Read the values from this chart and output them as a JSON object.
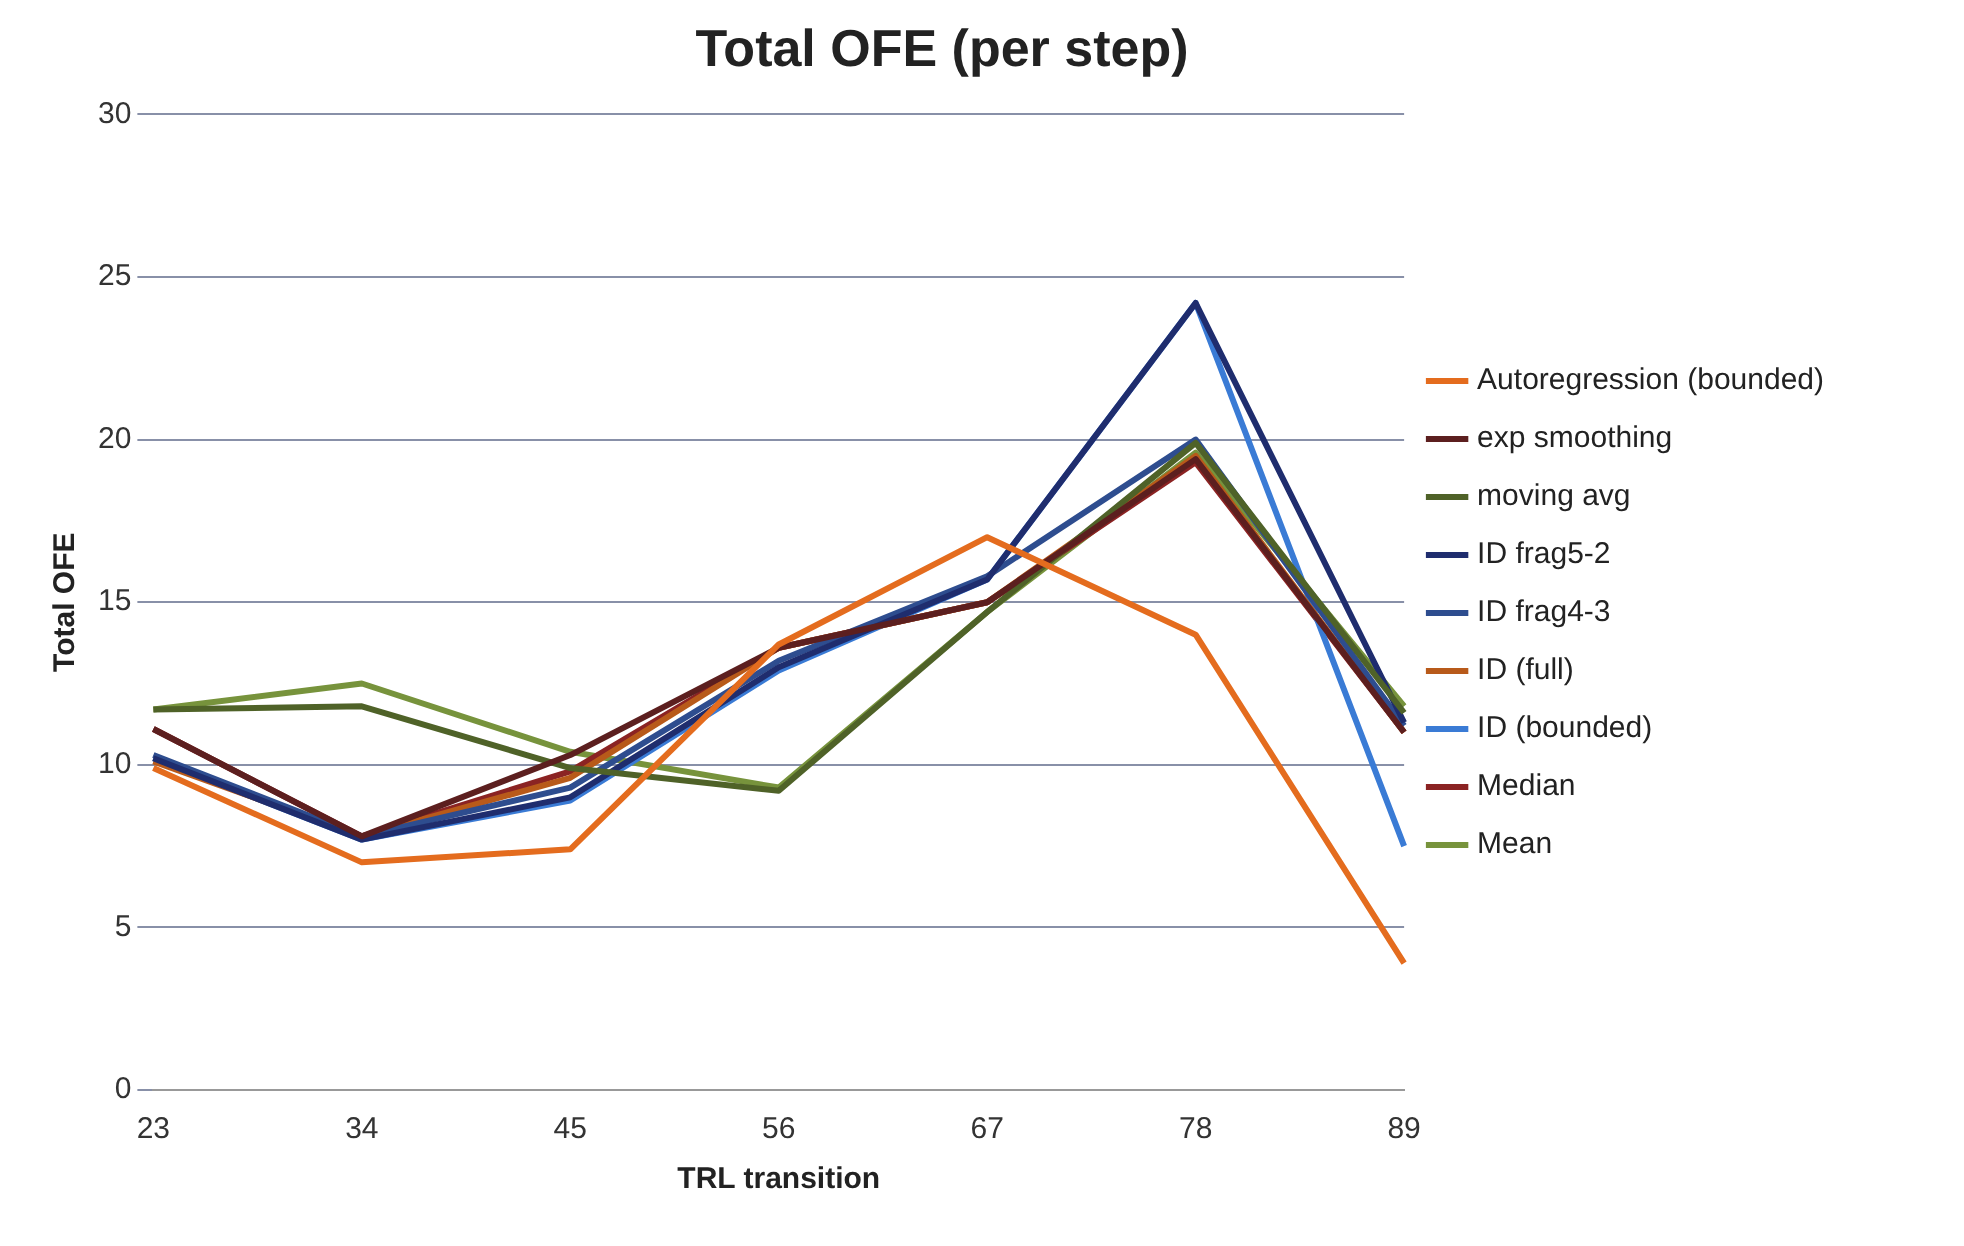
{
  "chart_data": {
    "type": "line",
    "title": "Total OFE (per step)",
    "xlabel": "TRL transition",
    "ylabel": "Total OFE",
    "categories": [
      "23",
      "34",
      "45",
      "56",
      "67",
      "78",
      "89"
    ],
    "ylim": [
      0,
      30
    ],
    "yticks": [
      0,
      5,
      10,
      15,
      20,
      25,
      30
    ],
    "grid": "y",
    "legend": "right",
    "marker": "none",
    "line_style": "solid",
    "series": [
      {
        "name": "Autoregression (bounded)",
        "color": "#e46c1e",
        "values": [
          9.9,
          7.0,
          7.4,
          13.7,
          17.0,
          14.0,
          3.9
        ]
      },
      {
        "name": "exp smoothing",
        "color": "#5c1f1f",
        "values": [
          11.1,
          7.8,
          10.3,
          13.6,
          15.0,
          19.4,
          11.0
        ]
      },
      {
        "name": "moving avg",
        "color": "#4f6228",
        "values": [
          11.7,
          11.8,
          9.9,
          9.2,
          14.7,
          19.9,
          11.6
        ]
      },
      {
        "name": "ID frag5-2",
        "color": "#1f2d6e",
        "values": [
          10.2,
          7.7,
          9.0,
          13.0,
          15.7,
          24.2,
          11.3
        ]
      },
      {
        "name": "ID frag4-3",
        "color": "#2e4d8f",
        "values": [
          10.3,
          7.8,
          9.3,
          13.2,
          15.8,
          20.0,
          11.2
        ]
      },
      {
        "name": "ID (full)",
        "color": "#b85a1a",
        "values": [
          10.1,
          7.8,
          9.6,
          13.6,
          15.0,
          19.5,
          11.0
        ]
      },
      {
        "name": "ID (bounded)",
        "color": "#3a7bd5",
        "values": [
          10.2,
          7.7,
          8.9,
          12.9,
          15.7,
          24.2,
          7.5
        ]
      },
      {
        "name": "Median",
        "color": "#8b2323",
        "values": [
          11.1,
          7.8,
          9.8,
          13.6,
          15.0,
          19.3,
          11.0
        ]
      },
      {
        "name": "Mean",
        "color": "#77933c",
        "values": [
          11.7,
          12.5,
          10.4,
          9.3,
          14.7,
          19.6,
          11.8
        ]
      }
    ]
  }
}
